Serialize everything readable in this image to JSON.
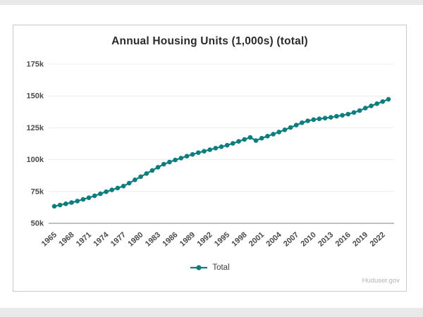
{
  "attribution": "Huduser.gov",
  "chart_data": {
    "type": "line",
    "title": "Annual Housing Units (1,000s) (total)",
    "xlabel": "",
    "ylabel": "",
    "grid": true,
    "legend_position": "bottom",
    "ylim": [
      50000,
      175000
    ],
    "xlim": [
      1964,
      2024
    ],
    "y_ticks": [
      50000,
      75000,
      100000,
      125000,
      150000,
      175000
    ],
    "y_tick_labels": [
      "50k",
      "75k",
      "100k",
      "125k",
      "150k",
      "175k"
    ],
    "x_ticks": [
      1965,
      1968,
      1971,
      1974,
      1977,
      1980,
      1983,
      1986,
      1989,
      1992,
      1995,
      1998,
      2001,
      2004,
      2007,
      2010,
      2013,
      2016,
      2019,
      2022
    ],
    "x_tick_labels": [
      "1965",
      "1968",
      "1971",
      "1974",
      "1977",
      "1980",
      "1983",
      "1986",
      "1989",
      "1992",
      "1995",
      "1998",
      "2001",
      "2004",
      "2007",
      "2010",
      "2013",
      "2016",
      "2019",
      "2022"
    ],
    "series": [
      {
        "name": "Total",
        "color": "#0d7d7d",
        "x": [
          1965,
          1966,
          1967,
          1968,
          1969,
          1970,
          1971,
          1972,
          1973,
          1974,
          1975,
          1976,
          1977,
          1978,
          1979,
          1980,
          1981,
          1982,
          1983,
          1984,
          1985,
          1986,
          1987,
          1988,
          1989,
          1990,
          1991,
          1992,
          1993,
          1994,
          1995,
          1996,
          1997,
          1998,
          1999,
          2000,
          2001,
          2002,
          2003,
          2004,
          2005,
          2006,
          2007,
          2008,
          2009,
          2010,
          2011,
          2012,
          2013,
          2014,
          2015,
          2016,
          2017,
          2018,
          2019,
          2020,
          2021,
          2022,
          2023
        ],
        "values": [
          63400,
          64300,
          65300,
          66300,
          67500,
          68800,
          70100,
          71600,
          73200,
          74800,
          76200,
          77700,
          79200,
          81600,
          84100,
          86600,
          89100,
          91500,
          94000,
          96400,
          98100,
          99700,
          101200,
          102700,
          104100,
          105500,
          106600,
          107800,
          109000,
          110100,
          111300,
          112800,
          114300,
          115900,
          117500,
          115000,
          116800,
          118400,
          120000,
          121700,
          123400,
          125200,
          127100,
          129000,
          130400,
          131400,
          132000,
          132600,
          133200,
          134000,
          134800,
          135700,
          137000,
          138500,
          140500,
          142200,
          143900,
          145600,
          147400
        ]
      }
    ],
    "colors": {
      "line": "#0d7d7d",
      "gridline": "#ececec",
      "axis_line": "#9b9b9b",
      "tick_label": "#4a4a4a",
      "title": "#2b2b2b"
    }
  }
}
